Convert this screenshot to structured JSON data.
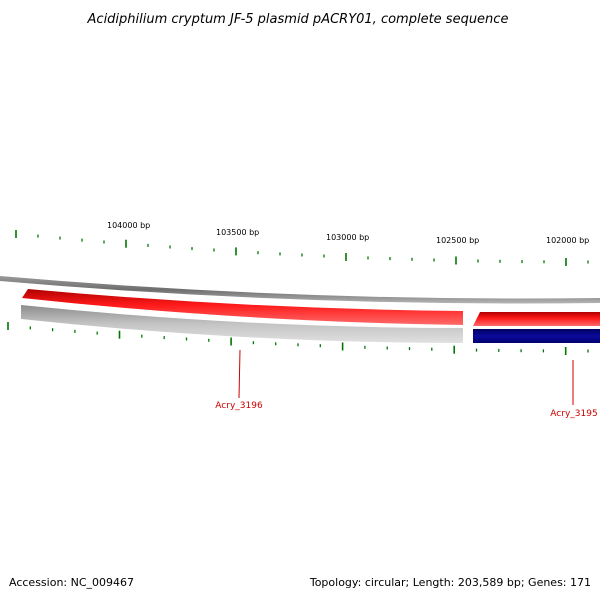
{
  "title": "Acidiphilium cryptum JF-5 plasmid pACRY01, complete sequence",
  "accession": "Accession: NC_009467",
  "summary": "Topology: circular; Length: 203,589 bp; Genes: 171",
  "ticks": [
    "104000 bp",
    "103500 bp",
    "103000 bp",
    "102500 bp",
    "102000 bp"
  ],
  "genes": [
    {
      "label": "Acry_3196",
      "color": "#cc0000"
    },
    {
      "label": "Acry_3195",
      "color": "#cc0000"
    }
  ],
  "colors": {
    "forward_feature": "#ff0000",
    "reverse_feature": "#000080",
    "backbone": "#808080",
    "ticks": "#007700",
    "gene_label": "#cc0000"
  }
}
